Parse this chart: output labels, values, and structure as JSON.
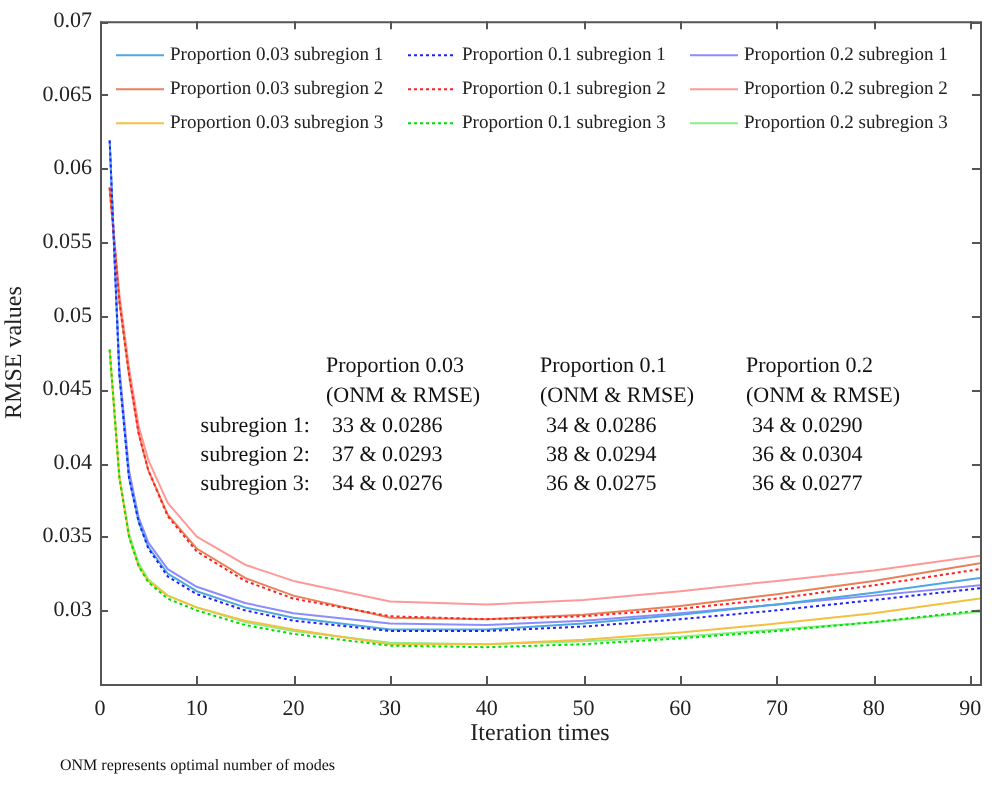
{
  "chart_data": {
    "type": "line",
    "xlabel": "Iteration times",
    "ylabel": "RMSE values",
    "x": [
      1,
      2,
      3,
      4,
      5,
      7,
      10,
      15,
      20,
      30,
      40,
      50,
      60,
      70,
      80,
      91
    ],
    "xlim": [
      0,
      91
    ],
    "xticks": [
      0,
      10,
      20,
      30,
      40,
      50,
      60,
      70,
      80,
      90
    ],
    "ylim": [
      0.025,
      0.07
    ],
    "yticks": [
      0.03,
      0.035,
      0.04,
      0.045,
      0.05,
      0.055,
      0.06,
      0.065,
      0.07
    ],
    "grid": false,
    "legend": "top",
    "marker": "none",
    "series": [
      {
        "name": "Proportion 0.03 subregion 1",
        "color": "#4ea7e0",
        "line_style": "solid",
        "values": [
          0.0619,
          0.046,
          0.039,
          0.036,
          0.0343,
          0.0325,
          0.0313,
          0.0302,
          0.0295,
          0.0287,
          0.0287,
          0.0291,
          0.0297,
          0.0304,
          0.0312,
          0.0322
        ]
      },
      {
        "name": "Proportion 0.1 subregion 1",
        "color": "#2020ff",
        "line_style": "dotted",
        "values": [
          0.0619,
          0.046,
          0.039,
          0.036,
          0.0342,
          0.0323,
          0.0311,
          0.03,
          0.0293,
          0.0286,
          0.0286,
          0.0289,
          0.0294,
          0.03,
          0.0307,
          0.0315
        ]
      },
      {
        "name": "Proportion 0.2 subregion 1",
        "color": "#8c8cff",
        "line_style": "solid",
        "values": [
          0.0619,
          0.0465,
          0.0395,
          0.0363,
          0.0346,
          0.0328,
          0.0316,
          0.0305,
          0.0298,
          0.0291,
          0.029,
          0.0293,
          0.0298,
          0.0304,
          0.031,
          0.0317
        ]
      },
      {
        "name": "Proportion 0.03 subregion 2",
        "color": "#e8805a",
        "line_style": "solid",
        "values": [
          0.0587,
          0.051,
          0.046,
          0.042,
          0.0395,
          0.0365,
          0.0342,
          0.0322,
          0.031,
          0.0295,
          0.0294,
          0.0297,
          0.0303,
          0.0311,
          0.032,
          0.0332
        ]
      },
      {
        "name": "Proportion 0.1 subregion 2",
        "color": "#ff2020",
        "line_style": "dotted",
        "values": [
          0.0587,
          0.051,
          0.046,
          0.042,
          0.0395,
          0.0364,
          0.034,
          0.032,
          0.0308,
          0.0296,
          0.0294,
          0.0296,
          0.0301,
          0.0308,
          0.0317,
          0.0328
        ]
      },
      {
        "name": "Proportion 0.2 subregion 2",
        "color": "#ff9999",
        "line_style": "solid",
        "values": [
          0.0587,
          0.0515,
          0.0465,
          0.0425,
          0.0402,
          0.0373,
          0.035,
          0.0331,
          0.032,
          0.0306,
          0.0304,
          0.0307,
          0.0313,
          0.032,
          0.0327,
          0.0337
        ]
      },
      {
        "name": "Proportion 0.03 subregion 3",
        "color": "#f5c040",
        "line_style": "solid",
        "values": [
          0.0477,
          0.039,
          0.035,
          0.033,
          0.032,
          0.031,
          0.0302,
          0.0293,
          0.0287,
          0.0277,
          0.0277,
          0.028,
          0.0285,
          0.0291,
          0.0298,
          0.0308
        ]
      },
      {
        "name": "Proportion 0.1 subregion 3",
        "color": "#00dd00",
        "line_style": "dotted",
        "values": [
          0.0477,
          0.039,
          0.035,
          0.033,
          0.0319,
          0.0308,
          0.03,
          0.029,
          0.0284,
          0.0276,
          0.0275,
          0.0277,
          0.0281,
          0.0286,
          0.0292,
          0.03
        ]
      },
      {
        "name": "Proportion 0.2 subregion 3",
        "color": "#88ee88",
        "line_style": "solid",
        "values": [
          0.0477,
          0.0392,
          0.0352,
          0.0332,
          0.0321,
          0.031,
          0.0302,
          0.0292,
          0.0286,
          0.0278,
          0.0277,
          0.0279,
          0.0282,
          0.0287,
          0.0292,
          0.0299
        ]
      }
    ],
    "annotations": [
      "Proportion 0.03",
      "Proportion 0.1",
      "Proportion 0.2",
      "(ONM & RMSE)",
      "(ONM & RMSE)",
      "(ONM & RMSE)",
      "subregion 1:",
      "33 & 0.0286",
      "34 & 0.0286",
      "34 & 0.0290",
      "subregion 2:",
      "37 & 0.0293",
      "38 & 0.0294",
      "36 & 0.0304",
      "subregion 3:",
      "34 & 0.0276",
      "36 & 0.0275",
      "36 & 0.0277",
      "ONM represents optimal number of modes"
    ]
  }
}
